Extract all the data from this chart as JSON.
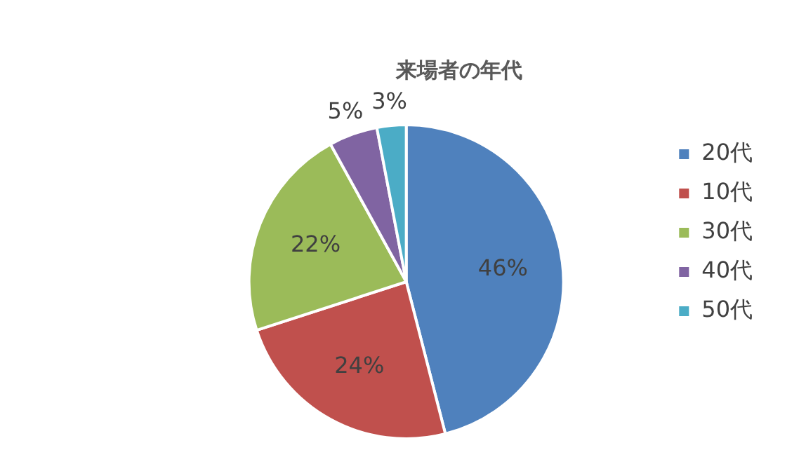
{
  "chart_data": {
    "type": "pie",
    "title": "来場者の年代",
    "categories": [
      "20代",
      "10代",
      "30代",
      "40代",
      "50代"
    ],
    "values": [
      46,
      24,
      22,
      5,
      3
    ],
    "value_labels": [
      "46%",
      "24%",
      "22%",
      "5%",
      "3%"
    ],
    "colors": [
      "#4f81bd",
      "#c0504d",
      "#9bbb59",
      "#8064a2",
      "#4bacc6"
    ],
    "legend": "right"
  }
}
